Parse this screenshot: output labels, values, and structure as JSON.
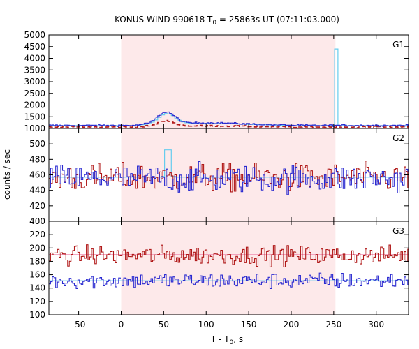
{
  "chart_data": {
    "type": "line",
    "title_main": "KONUS-WIND 990618 T",
    "title_sub": "0",
    "title_rest": " = 25863s UT (07:11:03.000)",
    "xlabel_main": "T - T",
    "xlabel_sub": "0",
    "xlabel_rest": ", s",
    "ylabel": "counts / sec",
    "xlim": [
      -85,
      338
    ],
    "x_ticks": [
      -50,
      0,
      50,
      100,
      150,
      200,
      250,
      300
    ],
    "x_tick_labels": [
      "-50",
      "0",
      "50",
      "100",
      "150",
      "200",
      "250",
      "300"
    ],
    "highlight_interval": [
      0,
      252
    ],
    "colors": {
      "red": "#b01818",
      "blue": "#2a2ad0",
      "cyan": "#66ccee",
      "pink_fit": "#f08bb0",
      "shade": "#fde9ea"
    },
    "panels": [
      {
        "label": "G1",
        "ylim": [
          1000,
          5000
        ],
        "y_ticks": [
          1000,
          1500,
          2000,
          2500,
          3000,
          3500,
          4000,
          4500,
          5000
        ],
        "y_tick_labels": [
          "1000",
          "1500",
          "2000",
          "2500",
          "3000",
          "3500",
          "4000",
          "4500",
          "5000"
        ],
        "blue_base": 1130,
        "red_base": 1060,
        "cyan_base": 1120,
        "pulse_peak_time": 52,
        "pulse_amp": 500,
        "spike_time": 252,
        "spike_value": 4400
      },
      {
        "label": "G2",
        "ylim": [
          400,
          520
        ],
        "y_ticks": [
          400,
          420,
          440,
          460,
          480,
          500
        ],
        "y_tick_labels": [
          "400",
          "420",
          "440",
          "460",
          "480",
          "500"
        ],
        "blue_base": 455,
        "red_base": 456,
        "cyan_base": 457,
        "pulse_peak_time": 53,
        "pulse_amp": 55
      },
      {
        "label": "G3",
        "ylim": [
          100,
          240
        ],
        "y_ticks": [
          100,
          120,
          140,
          160,
          180,
          200,
          220
        ],
        "y_tick_labels": [
          "100",
          "120",
          "140",
          "160",
          "180",
          "200",
          "220"
        ],
        "blue_base": 151,
        "red_base": 189,
        "fit_red": 190,
        "fit_blue": 151
      }
    ]
  }
}
